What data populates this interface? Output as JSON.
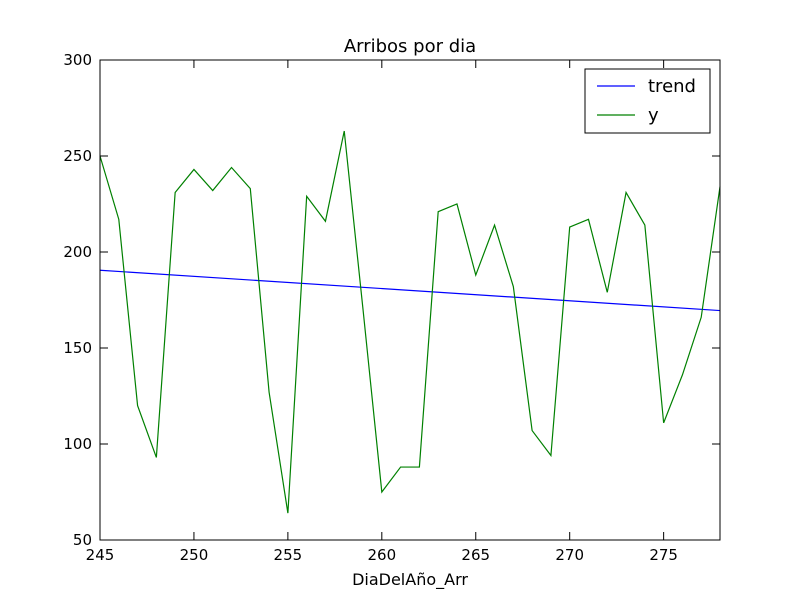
{
  "chart_data": {
    "type": "line",
    "title": "Arribos por dia",
    "xlabel": "DiaDelAño_Arr",
    "ylabel": "",
    "xlim": [
      245,
      278
    ],
    "ylim": [
      50,
      300
    ],
    "xticks": [
      245,
      250,
      255,
      260,
      265,
      270,
      275
    ],
    "yticks": [
      50,
      100,
      150,
      200,
      250,
      300
    ],
    "xtick_labels": [
      "245",
      "250",
      "255",
      "260",
      "265",
      "270",
      "275"
    ],
    "ytick_labels": [
      "50",
      "100",
      "150",
      "200",
      "250",
      "300"
    ],
    "grid": false,
    "legend_position": "top-right",
    "series": [
      {
        "name": "trend",
        "color": "#0000ff",
        "x": [
          245,
          278
        ],
        "y": [
          190.5,
          169.5
        ]
      },
      {
        "name": "y",
        "color": "#008000",
        "x": [
          245,
          246,
          247,
          248,
          249,
          250,
          251,
          252,
          253,
          254,
          255,
          256,
          257,
          258,
          259,
          260,
          261,
          262,
          263,
          264,
          265,
          266,
          267,
          268,
          269,
          270,
          271,
          272,
          273,
          274,
          275,
          276,
          277,
          278
        ],
        "y": [
          250,
          217,
          120,
          93,
          231,
          243,
          232,
          244,
          233,
          127,
          64,
          229,
          216,
          263,
          170,
          75,
          88,
          88,
          221,
          225,
          188,
          214,
          182,
          107,
          94,
          213,
          217,
          179,
          231,
          214,
          111,
          136,
          166,
          234
        ]
      }
    ]
  }
}
